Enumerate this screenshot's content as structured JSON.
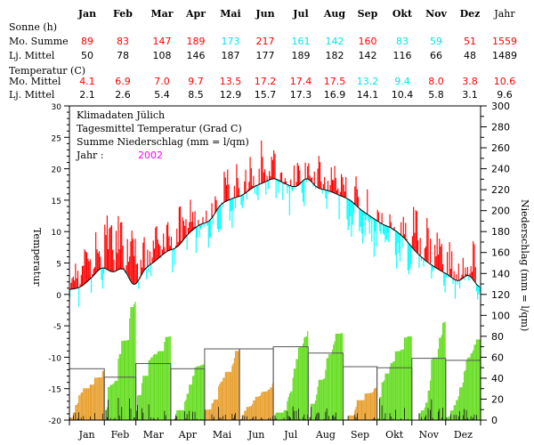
{
  "table": {
    "months": [
      "Jan",
      "Feb",
      "Mar",
      "Apr",
      "Mai",
      "Jun",
      "Jul",
      "Aug",
      "Sep",
      "Okt",
      "Nov",
      "Dez"
    ],
    "year_label": "Jahr",
    "sun_section": "Sonne (h)",
    "sun_rows": [
      {
        "label": "Mo. Summe",
        "values": [
          "89",
          "83",
          "147",
          "189",
          "173",
          "217",
          "161",
          "142",
          "160",
          "83",
          "59",
          "51"
        ],
        "year": "1559",
        "colors": [
          "#ff0000",
          "#ff0000",
          "#ff0000",
          "#ff0000",
          "#00e5ee",
          "#ff0000",
          "#00e5ee",
          "#00e5ee",
          "#ff0000",
          "#00e5ee",
          "#00e5ee",
          "#ff0000"
        ],
        "year_color": "#ff0000"
      },
      {
        "label": "Lj. Mittel",
        "values": [
          "50",
          "78",
          "108",
          "146",
          "187",
          "177",
          "189",
          "182",
          "142",
          "116",
          "66",
          "48"
        ],
        "year": "1489",
        "colors": [
          "#000000",
          "#000000",
          "#000000",
          "#000000",
          "#000000",
          "#000000",
          "#000000",
          "#000000",
          "#000000",
          "#000000",
          "#000000",
          "#000000"
        ],
        "year_color": "#000000"
      }
    ],
    "temp_section": "Temperatur (C)",
    "temp_rows": [
      {
        "label": "Mo. Mittel",
        "values": [
          "4.1",
          "6.9",
          "7.0",
          "9.7",
          "13.5",
          "17.2",
          "17.4",
          "17.5",
          "13.2",
          "9.4",
          "8.0",
          "3.8"
        ],
        "year": "10.6",
        "colors": [
          "#ff0000",
          "#ff0000",
          "#ff0000",
          "#ff0000",
          "#ff0000",
          "#ff0000",
          "#ff0000",
          "#ff0000",
          "#00e5ee",
          "#00e5ee",
          "#ff0000",
          "#ff0000"
        ],
        "year_color": "#ff0000"
      },
      {
        "label": "Lj. Mittel",
        "values": [
          "2.1",
          "2.6",
          "5.4",
          "8.5",
          "12.9",
          "15.7",
          "17.3",
          "16.9",
          "14.1",
          "10.4",
          "5.8",
          "3.1"
        ],
        "year": "9.6",
        "colors": [
          "#000000",
          "#000000",
          "#000000",
          "#000000",
          "#000000",
          "#000000",
          "#000000",
          "#000000",
          "#000000",
          "#000000",
          "#000000",
          "#000000"
        ],
        "year_color": "#000000"
      }
    ]
  },
  "chart_data": {
    "type": "bar",
    "title_lines": [
      "Klimadaten Jülich",
      "Tagesmittel Temperatur (Grad C)",
      "Summe Niederschlag (mm = l/qm)"
    ],
    "year_label": "Jahr :",
    "year_value": "2002",
    "ylabel_left": "Temperatur",
    "ylabel_right": "Niederschlag (mm = l/qm)",
    "ylim_left": [
      -20,
      30
    ],
    "ylim_right": [
      0,
      300
    ],
    "left_ticks": [
      "30",
      "25",
      "20",
      "15",
      "10",
      "5",
      "0",
      "-5",
      "-10",
      "-15",
      "-20"
    ],
    "right_ticks": [
      "300",
      "280",
      "260",
      "240",
      "220",
      "200",
      "180",
      "160",
      "140",
      "120",
      "100",
      "80",
      "60",
      "40",
      "20",
      "0"
    ],
    "x_ticks": [
      "Jan",
      "Feb",
      "Mar",
      "Apr",
      "Mai",
      "Jun",
      "Jul",
      "Aug",
      "Sep",
      "Okt",
      "Nov",
      "Dez"
    ],
    "colors": {
      "warm": "#ff0000",
      "cold": "#00ffff",
      "normal_line": "#000000",
      "precip_wet": "#66dd22",
      "precip_dry": "#e8a030",
      "daily_precip": "#000000",
      "year": "#ff00ff"
    },
    "precip_monthly_normal_mm": [
      49,
      41,
      54,
      49,
      68,
      68,
      70,
      64,
      51,
      50,
      59,
      57
    ],
    "precip_monthly_total_mm": [
      47,
      113,
      80,
      53,
      66,
      35,
      85,
      83,
      31,
      80,
      94,
      77
    ],
    "temp_normal_knots_c": [
      0.8,
      1.2,
      2.6,
      4.2,
      3.6,
      4.0,
      1.6,
      4.0,
      5.4,
      6.8,
      7.6,
      9.6,
      11.0,
      11.8,
      14.2,
      15.2,
      15.8,
      17.0,
      17.8,
      18.4,
      17.6,
      17.2,
      18.4,
      17.0,
      16.5,
      15.8,
      15.0,
      13.5,
      12.3,
      11.2,
      10.4,
      9.0,
      7.0,
      5.4,
      4.2,
      3.2,
      2.2,
      3.0,
      1.2
    ]
  }
}
